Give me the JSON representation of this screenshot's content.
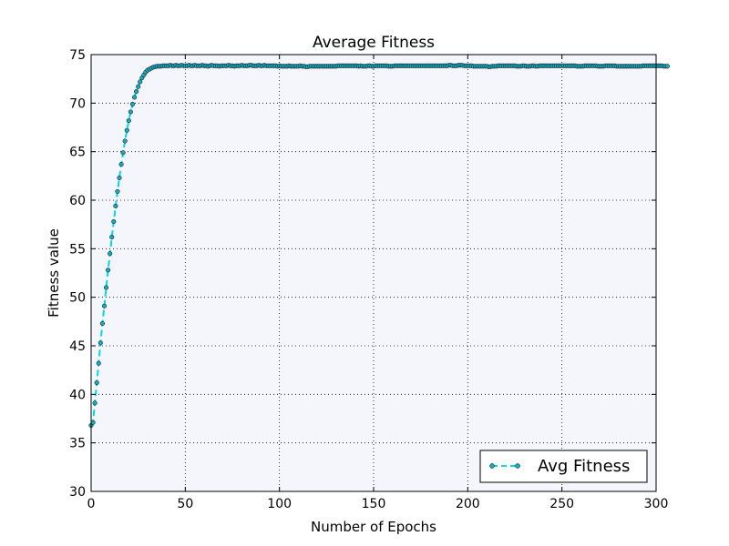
{
  "chart_data": {
    "type": "line",
    "title": "Average Fitness",
    "xlabel": "Number of Epochs",
    "ylabel": "Fitness value",
    "xlim": [
      0,
      300
    ],
    "ylim": [
      30,
      75
    ],
    "xticks": [
      0,
      50,
      100,
      150,
      200,
      250,
      300
    ],
    "yticks": [
      30,
      35,
      40,
      45,
      50,
      55,
      60,
      65,
      70,
      75
    ],
    "grid": true,
    "legend_position": "lower-right",
    "colors": {
      "line": "#00d7e8",
      "marker": "#1aa9bf",
      "background": "#f5f6fb"
    },
    "series": [
      {
        "name": "Avg Fitness",
        "x_start": 0,
        "x_step": 1,
        "values": [
          36.8,
          37.1,
          39.1,
          41.2,
          43.2,
          45.3,
          47.3,
          49.1,
          51.0,
          52.8,
          54.5,
          56.2,
          57.8,
          59.4,
          60.9,
          62.3,
          63.7,
          64.9,
          66.1,
          67.2,
          68.2,
          69.1,
          69.9,
          70.6,
          71.2,
          71.7,
          72.2,
          72.6,
          72.9,
          73.2,
          73.4,
          73.5,
          73.6,
          73.7,
          73.75,
          73.8,
          73.8,
          73.8,
          73.85,
          73.85,
          73.85,
          73.85,
          73.9,
          73.85,
          73.85,
          73.9,
          73.85,
          73.85,
          73.9,
          73.85,
          73.85,
          73.85,
          73.9,
          73.85,
          73.85,
          73.9,
          73.85,
          73.85,
          73.85,
          73.9,
          73.85,
          73.85,
          73.8,
          73.85,
          73.9,
          73.85,
          73.85,
          73.85,
          73.8,
          73.85,
          73.85,
          73.85,
          73.85,
          73.9,
          73.85,
          73.85,
          73.8,
          73.85,
          73.85,
          73.85,
          73.9,
          73.85,
          73.85,
          73.85,
          73.9,
          73.9,
          73.85,
          73.85,
          73.85,
          73.9,
          73.85,
          73.85,
          73.9,
          73.85,
          73.85,
          73.85,
          73.85,
          73.85,
          73.85,
          73.8,
          73.85,
          73.8,
          73.8,
          73.8,
          73.8,
          73.85,
          73.8,
          73.8,
          73.8,
          73.8,
          73.8,
          73.85,
          73.8,
          73.8,
          73.75,
          73.75,
          73.8,
          73.8,
          73.8,
          73.8,
          73.8,
          73.8,
          73.8,
          73.8,
          73.8,
          73.8,
          73.8,
          73.8,
          73.8,
          73.8,
          73.8,
          73.85,
          73.85,
          73.85,
          73.85,
          73.85,
          73.85,
          73.85,
          73.85,
          73.85,
          73.85,
          73.85,
          73.8,
          73.85,
          73.8,
          73.8,
          73.8,
          73.85,
          73.85,
          73.8,
          73.8,
          73.85,
          73.85,
          73.85,
          73.85,
          73.85,
          73.85,
          73.85,
          73.8,
          73.8,
          73.8,
          73.85,
          73.85,
          73.85,
          73.85,
          73.85,
          73.85,
          73.85,
          73.85,
          73.85,
          73.85,
          73.85,
          73.85,
          73.85,
          73.85,
          73.85,
          73.85,
          73.85,
          73.85,
          73.85,
          73.85,
          73.85,
          73.85,
          73.85,
          73.85,
          73.85,
          73.85,
          73.85,
          73.85,
          73.85,
          73.9,
          73.9,
          73.85,
          73.85,
          73.85,
          73.9,
          73.9,
          73.9,
          73.85,
          73.85,
          73.85,
          73.85,
          73.85,
          73.8,
          73.8,
          73.8,
          73.8,
          73.8,
          73.8,
          73.8,
          73.8,
          73.75,
          73.75,
          73.8,
          73.8,
          73.8,
          73.85,
          73.85,
          73.85,
          73.85,
          73.85,
          73.85,
          73.85,
          73.85,
          73.85,
          73.85,
          73.8,
          73.8,
          73.8,
          73.85,
          73.85,
          73.8,
          73.8,
          73.8,
          73.85,
          73.85,
          73.8,
          73.8,
          73.85,
          73.85,
          73.85,
          73.85,
          73.85,
          73.85,
          73.85,
          73.85,
          73.85,
          73.85,
          73.85,
          73.85,
          73.85,
          73.85,
          73.85,
          73.85,
          73.85,
          73.85,
          73.85,
          73.85,
          73.8,
          73.8,
          73.8,
          73.8,
          73.85,
          73.85,
          73.85,
          73.85,
          73.85,
          73.85,
          73.85,
          73.8,
          73.8,
          73.8,
          73.8,
          73.85,
          73.85,
          73.85,
          73.85,
          73.85,
          73.85,
          73.8,
          73.8,
          73.8,
          73.8,
          73.8,
          73.8,
          73.8,
          73.8,
          73.8,
          73.8,
          73.8,
          73.8,
          73.8,
          73.8,
          73.85,
          73.85,
          73.85,
          73.85,
          73.85,
          73.85,
          73.85,
          73.85,
          73.85,
          73.85,
          73.85,
          73.8,
          73.8,
          73.8
        ]
      }
    ]
  }
}
